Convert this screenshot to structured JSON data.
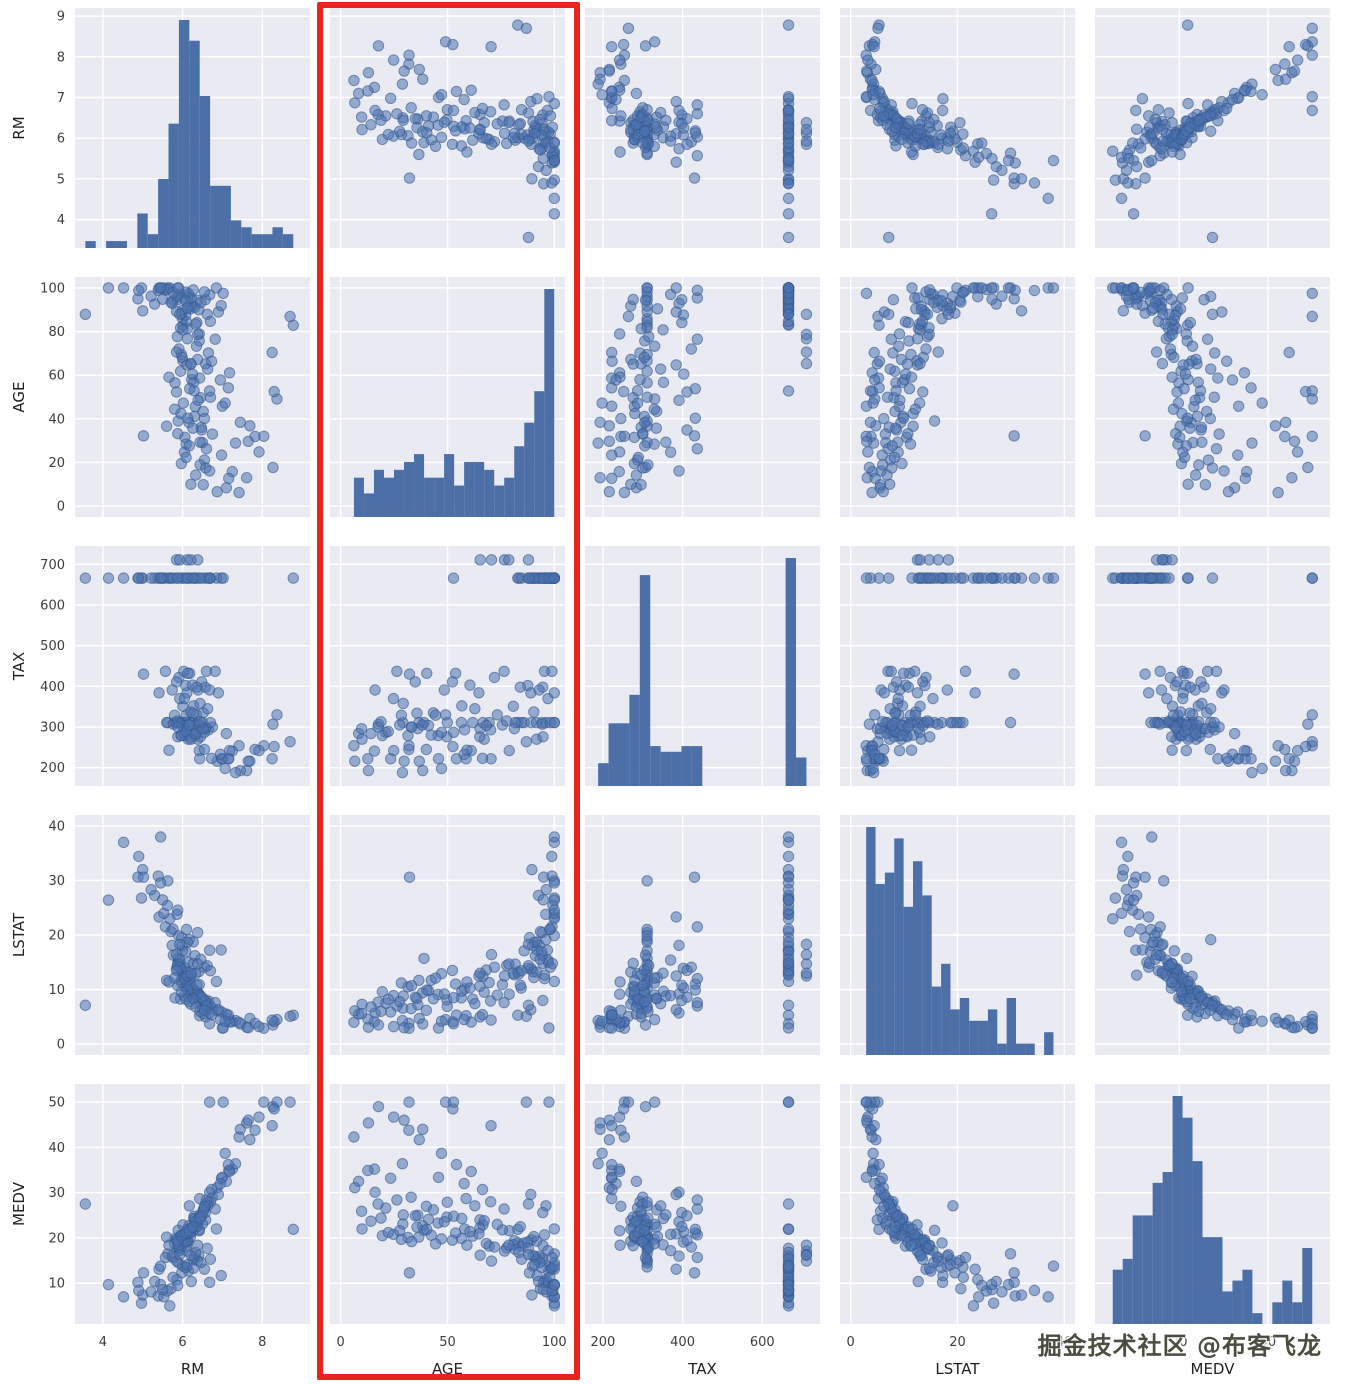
{
  "figure": {
    "watermark": "掘金技术社区 @布客飞龙",
    "highlight": {
      "column": "AGE",
      "color": "#e8251d"
    },
    "panel_bg": "#eaeaf2",
    "grid_color": "#ffffff",
    "marker_color": "#4c72b0",
    "marker_edge": "#35598c",
    "hist_color": "#4468a2",
    "tick_color": "#3d3d3d",
    "label_color": "#1f1f1f"
  },
  "chart_data": {
    "type": "scatter",
    "subtype": "pairplot-scatter-matrix",
    "title": "",
    "diagonal": "hist",
    "hist_bins": 20,
    "legend": "none",
    "grid": true,
    "columns": [
      "RM",
      "AGE",
      "TAX",
      "LSTAT",
      "MEDV"
    ],
    "variables": [
      {
        "name": "RM",
        "domain": [
          3.3,
          9.2
        ],
        "ticks": [
          4,
          5,
          6,
          7,
          8,
          9
        ],
        "ticks_sparse": [
          4,
          6,
          8
        ]
      },
      {
        "name": "AGE",
        "domain": [
          -5,
          105
        ],
        "ticks": [
          0,
          20,
          40,
          60,
          80,
          100
        ],
        "ticks_sparse": [
          0,
          50,
          100
        ]
      },
      {
        "name": "TAX",
        "domain": [
          155,
          745
        ],
        "ticks": [
          200,
          300,
          400,
          500,
          600,
          700
        ],
        "ticks_sparse": [
          200,
          400,
          600
        ]
      },
      {
        "name": "LSTAT",
        "domain": [
          -2,
          42
        ],
        "ticks": [
          0,
          10,
          20,
          30,
          40
        ],
        "ticks_sparse": [
          0,
          20,
          40
        ]
      },
      {
        "name": "MEDV",
        "domain": [
          1,
          54
        ],
        "ticks": [
          10,
          20,
          30,
          40,
          50
        ],
        "ticks_sparse": [
          20,
          40
        ]
      }
    ],
    "points": [
      [
        7.25,
        15.8,
        241,
        4.1,
        35.2
      ],
      [
        7.69,
        36.8,
        216,
        4.7,
        41.7
      ],
      [
        7.82,
        31.9,
        245,
        3.8,
        43.8
      ],
      [
        8.27,
        17.7,
        307,
        3.5,
        49.0
      ],
      [
        8.04,
        32.0,
        254,
        2.9,
        50.0
      ],
      [
        8.78,
        82.9,
        666,
        5.3,
        21.9
      ],
      [
        8.7,
        86.9,
        264,
        5.1,
        50.0
      ],
      [
        8.37,
        49.1,
        330,
        4.5,
        50.0
      ],
      [
        7.92,
        24.8,
        242,
        3.2,
        46.7
      ],
      [
        7.61,
        13.0,
        193,
        3.1,
        45.4
      ],
      [
        7.45,
        38.4,
        193,
        3.7,
        44.0
      ],
      [
        7.33,
        28.9,
        188,
        4.3,
        36.4
      ],
      [
        6.98,
        23.4,
        222,
        5.9,
        33.2
      ],
      [
        7.1,
        8.4,
        284,
        5.5,
        32.5
      ],
      [
        7.16,
        12.7,
        222,
        4.6,
        34.9
      ],
      [
        6.87,
        6.6,
        216,
        6.1,
        31.1
      ],
      [
        7.42,
        6.2,
        254,
        4.0,
        42.3
      ],
      [
        7.65,
        29.7,
        216,
        3.0,
        46.0
      ],
      [
        8.3,
        52.5,
        252,
        4.1,
        48.5
      ],
      [
        8.25,
        70.4,
        222,
        4.4,
        44.8
      ],
      [
        6.58,
        65.2,
        296,
        4.98,
        24.0
      ],
      [
        6.42,
        78.9,
        242,
        9.14,
        21.6
      ],
      [
        7.18,
        61.1,
        242,
        4.03,
        34.7
      ],
      [
        7.0,
        45.8,
        222,
        2.94,
        33.4
      ],
      [
        7.15,
        54.2,
        222,
        5.33,
        36.2
      ],
      [
        6.43,
        58.7,
        222,
        5.21,
        28.7
      ],
      [
        6.01,
        66.6,
        311,
        12.43,
        22.9
      ],
      [
        6.17,
        96.1,
        311,
        19.15,
        27.1
      ],
      [
        5.63,
        100.0,
        311,
        29.93,
        16.5
      ],
      [
        6.0,
        85.9,
        311,
        17.1,
        18.9
      ],
      [
        6.38,
        94.3,
        311,
        20.45,
        15.0
      ],
      [
        6.01,
        82.9,
        311,
        13.27,
        18.9
      ],
      [
        5.89,
        39.0,
        311,
        15.71,
        21.7
      ],
      [
        5.95,
        61.8,
        311,
        8.26,
        20.4
      ],
      [
        6.1,
        84.5,
        311,
        10.26,
        18.2
      ],
      [
        5.81,
        56.5,
        311,
        8.47,
        19.9
      ],
      [
        6.5,
        29.1,
        311,
        6.58,
        23.1
      ],
      [
        5.95,
        81.7,
        311,
        14.67,
        17.5
      ],
      [
        5.6,
        36.6,
        311,
        11.69,
        20.2
      ],
      [
        5.97,
        69.5,
        311,
        11.28,
        18.2
      ],
      [
        6.1,
        98.1,
        311,
        21.02,
        13.6
      ],
      [
        5.85,
        89.2,
        311,
        13.83,
        19.6
      ],
      [
        6.27,
        91.7,
        311,
        18.72,
        15.2
      ],
      [
        5.9,
        100.0,
        311,
        19.88,
        14.5
      ],
      [
        5.77,
        94.4,
        307,
        16.3,
        15.6
      ],
      [
        6.38,
        67.2,
        270,
        9.5,
        23.8
      ],
      [
        6.14,
        91.7,
        270,
        13.2,
        19.3
      ],
      [
        5.88,
        94.7,
        276,
        14.8,
        18.3
      ],
      [
        6.21,
        65.1,
        276,
        10.6,
        22.2
      ],
      [
        6.45,
        49.7,
        276,
        8.1,
        24.6
      ],
      [
        6.06,
        31.5,
        279,
        10.5,
        20.1
      ],
      [
        6.32,
        45.6,
        279,
        9.1,
        23.3
      ],
      [
        5.96,
        42.4,
        280,
        11.7,
        20.6
      ],
      [
        6.55,
        21.1,
        287,
        7.5,
        26.6
      ],
      [
        6.02,
        47.2,
        287,
        12.9,
        19.8
      ],
      [
        6.29,
        52.9,
        287,
        8.5,
        24.8
      ],
      [
        6.65,
        70.2,
        293,
        7.9,
        28.0
      ],
      [
        6.23,
        58.0,
        293,
        10.1,
        22.0
      ],
      [
        6.12,
        81.3,
        296,
        12.7,
        19.4
      ],
      [
        6.47,
        36.1,
        296,
        7.2,
        25.0
      ],
      [
        6.75,
        33.0,
        300,
        6.5,
        29.0
      ],
      [
        6.58,
        17.5,
        300,
        7.7,
        27.5
      ],
      [
        6.3,
        41.1,
        304,
        9.8,
        24.1
      ],
      [
        5.99,
        68.2,
        304,
        13.6,
        18.8
      ],
      [
        6.42,
        75.7,
        305,
        10.9,
        21.8
      ],
      [
        6.16,
        38.3,
        305,
        9.4,
        22.7
      ],
      [
        6.7,
        49.9,
        311,
        6.9,
        27.9
      ],
      [
        5.87,
        77.7,
        315,
        14.4,
        17.8
      ],
      [
        6.09,
        28.4,
        329,
        11.2,
        19.7
      ],
      [
        6.35,
        73.3,
        330,
        9.0,
        23.0
      ],
      [
        6.52,
        43.4,
        335,
        8.3,
        26.2
      ],
      [
        6.2,
        90.4,
        337,
        12.2,
        20.3
      ],
      [
        6.63,
        62.8,
        345,
        7.4,
        27.1
      ],
      [
        6.01,
        80.8,
        351,
        13.0,
        18.5
      ],
      [
        6.28,
        56.7,
        352,
        9.7,
        24.3
      ],
      [
        6.44,
        29.3,
        358,
        8.8,
        25.1
      ],
      [
        5.93,
        97.0,
        370,
        15.4,
        17.2
      ],
      [
        6.11,
        64.7,
        384,
        12.5,
        20.9
      ],
      [
        6.39,
        48.5,
        391,
        9.2,
        23.6
      ],
      [
        6.57,
        94.6,
        398,
        8.0,
        25.6
      ],
      [
        6.08,
        87.6,
        402,
        13.9,
        19.1
      ],
      [
        6.25,
        60.5,
        403,
        10.3,
        21.4
      ],
      [
        6.48,
        34.9,
        411,
        8.6,
        24.9
      ],
      [
        5.91,
        72.0,
        422,
        14.1,
        18.0
      ],
      [
        6.18,
        53.8,
        432,
        11.0,
        21.1
      ],
      [
        6.6,
        26.3,
        437,
        7.0,
        28.4
      ],
      [
        6.03,
        95.4,
        437,
        12.0,
        20.7
      ],
      [
        5.57,
        98.9,
        437,
        21.5,
        15.7
      ],
      [
        6.82,
        76.5,
        437,
        7.6,
        26.4
      ],
      [
        6.13,
        40.3,
        432,
        9.9,
        21.9
      ],
      [
        5.85,
        52.3,
        411,
        13.5,
        19.5
      ],
      [
        6.36,
        84.1,
        398,
        10.8,
        22.5
      ],
      [
        6.68,
        16.1,
        391,
        5.7,
        30.1
      ],
      [
        6.9,
        89.0,
        384,
        6.3,
        29.6
      ],
      [
        6.05,
        24.7,
        370,
        8.9,
        20.8
      ],
      [
        5.41,
        100.0,
        384,
        23.3,
        13.1
      ],
      [
        5.74,
        92.9,
        391,
        18.1,
        16.0
      ],
      [
        6.31,
        91.1,
        666,
        16.2,
        15.8
      ],
      [
        5.68,
        100.0,
        666,
        22.98,
        5.0
      ],
      [
        4.97,
        100.0,
        666,
        26.77,
        5.6
      ],
      [
        6.68,
        96.8,
        666,
        17.21,
        10.2
      ],
      [
        5.39,
        98.9,
        666,
        30.81,
        7.2
      ],
      [
        5.53,
        100.0,
        666,
        23.97,
        7.0
      ],
      [
        5.0,
        89.5,
        666,
        31.99,
        7.4
      ],
      [
        6.22,
        95.4,
        666,
        12.64,
        10.4
      ],
      [
        6.97,
        91.9,
        666,
        17.27,
        11.7
      ],
      [
        6.55,
        98.2,
        666,
        14.1,
        13.1
      ],
      [
        5.86,
        96.0,
        666,
        23.79,
        10.8
      ],
      [
        6.0,
        89.8,
        666,
        18.07,
        13.8
      ],
      [
        5.71,
        93.5,
        666,
        20.62,
        8.8
      ],
      [
        6.15,
        97.3,
        666,
        15.02,
        12.7
      ],
      [
        4.88,
        95.0,
        666,
        30.62,
        10.2
      ],
      [
        4.52,
        100.0,
        666,
        36.98,
        7.0
      ],
      [
        5.45,
        100.0,
        666,
        29.55,
        9.7
      ],
      [
        6.41,
        90.0,
        666,
        13.28,
        16.1
      ],
      [
        6.85,
        100.0,
        666,
        11.48,
        22.0
      ],
      [
        6.62,
        87.9,
        666,
        14.37,
        17.7
      ],
      [
        5.98,
        88.4,
        666,
        19.52,
        12.3
      ],
      [
        5.3,
        92.6,
        666,
        27.26,
        10.4
      ],
      [
        6.08,
        94.1,
        666,
        16.94,
        13.5
      ],
      [
        5.62,
        99.3,
        666,
        25.41,
        8.3
      ],
      [
        6.33,
        83.4,
        666,
        12.87,
        16.8
      ],
      [
        5.76,
        97.9,
        666,
        21.08,
        11.3
      ],
      [
        6.46,
        93.3,
        666,
        15.55,
        14.6
      ],
      [
        5.21,
        96.2,
        666,
        28.32,
        8.1
      ],
      [
        6.7,
        84.7,
        666,
        13.44,
        15.3
      ],
      [
        5.88,
        100.0,
        666,
        24.56,
        9.5
      ],
      [
        6.12,
        90.7,
        666,
        18.66,
        14.1
      ],
      [
        5.5,
        94.8,
        666,
        26.45,
        8.6
      ],
      [
        6.27,
        99.1,
        666,
        14.79,
        13.3
      ],
      [
        4.9,
        98.8,
        666,
        34.41,
        8.4
      ],
      [
        5.45,
        100.0,
        666,
        37.97,
        13.8
      ],
      [
        6.68,
        52.8,
        666,
        3.73,
        50.0
      ],
      [
        7.02,
        97.5,
        666,
        2.96,
        50.0
      ],
      [
        3.56,
        87.9,
        666,
        7.12,
        27.5
      ],
      [
        4.14,
        100.0,
        666,
        26.4,
        9.7
      ],
      [
        6.12,
        76.7,
        711,
        12.5,
        17.1
      ],
      [
        5.85,
        70.6,
        711,
        16.4,
        14.9
      ],
      [
        6.38,
        78.7,
        711,
        14.7,
        18.4
      ],
      [
        5.93,
        87.9,
        711,
        18.3,
        16.3
      ],
      [
        6.21,
        65.3,
        711,
        13.0,
        16.2
      ],
      [
        6.21,
        10.0,
        270,
        7.3,
        22.0
      ],
      [
        5.97,
        19.5,
        279,
        9.6,
        20.5
      ],
      [
        6.33,
        14.2,
        284,
        6.8,
        23.7
      ],
      [
        6.09,
        22.3,
        289,
        8.2,
        21.2
      ],
      [
        6.52,
        9.8,
        296,
        5.6,
        25.9
      ],
      [
        5.88,
        33.2,
        300,
        10.7,
        19.2
      ],
      [
        6.17,
        27.6,
        305,
        7.8,
        21.6
      ],
      [
        6.44,
        18.9,
        313,
        6.0,
        24.4
      ],
      [
        5.8,
        44.4,
        329,
        12.1,
        18.7
      ],
      [
        6.26,
        35.7,
        334,
        8.4,
        22.4
      ],
      [
        6.55,
        40.1,
        245,
        6.2,
        27.0
      ],
      [
        5.66,
        59.1,
        243,
        11.4,
        18.4
      ],
      [
        6.95,
        57.8,
        233,
        4.5,
        32.0
      ],
      [
        6.73,
        66.4,
        223,
        5.4,
        30.7
      ],
      [
        7.07,
        47.2,
        198,
        4.2,
        38.7
      ],
      [
        5.02,
        32.2,
        430,
        30.6,
        12.3
      ]
    ]
  }
}
